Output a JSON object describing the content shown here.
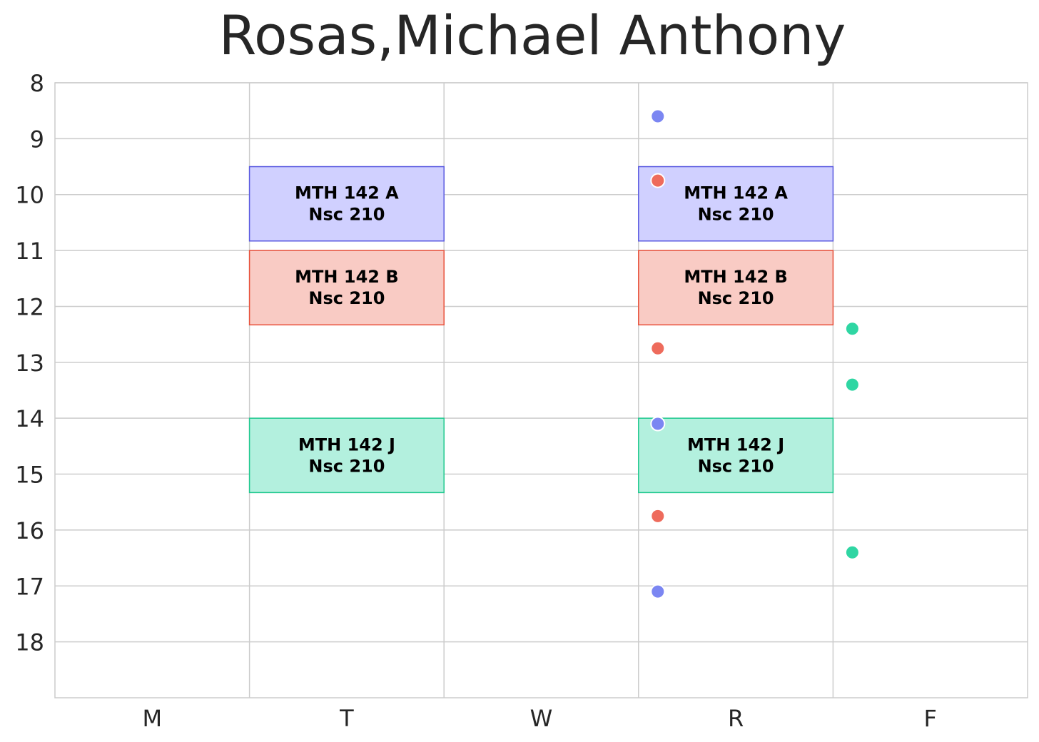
{
  "chart_data": {
    "type": "schedule",
    "title": "Rosas,Michael Anthony",
    "days": [
      "M",
      "T",
      "W",
      "R",
      "F"
    ],
    "y_ticks": [
      8,
      9,
      10,
      11,
      12,
      13,
      14,
      15,
      16,
      17,
      18
    ],
    "ylim": [
      8,
      19
    ],
    "y_inverted": true,
    "grid": true,
    "blocks": [
      {
        "day": "T",
        "start": 9.5,
        "end": 10.83,
        "course": "MTH 142 A",
        "room": "Nsc 210",
        "fill": "#d0d0ff",
        "edge": "#5a5ae0"
      },
      {
        "day": "T",
        "start": 11.0,
        "end": 12.33,
        "course": "MTH 142 B",
        "room": "Nsc 210",
        "fill": "#f9cbc4",
        "edge": "#e8503a"
      },
      {
        "day": "T",
        "start": 14.0,
        "end": 15.33,
        "course": "MTH 142 J",
        "room": "Nsc 210",
        "fill": "#b3f0de",
        "edge": "#1fc98f"
      },
      {
        "day": "R",
        "start": 9.5,
        "end": 10.83,
        "course": "MTH 142 A",
        "room": "Nsc 210",
        "fill": "#d0d0ff",
        "edge": "#5a5ae0"
      },
      {
        "day": "R",
        "start": 11.0,
        "end": 12.33,
        "course": "MTH 142 B",
        "room": "Nsc 210",
        "fill": "#f9cbc4",
        "edge": "#e8503a"
      },
      {
        "day": "R",
        "start": 14.0,
        "end": 15.33,
        "course": "MTH 142 J",
        "room": "Nsc 210",
        "fill": "#b3f0de",
        "edge": "#1fc98f"
      }
    ],
    "points": [
      {
        "day": "R",
        "time": 8.6,
        "color": "#7b86f2"
      },
      {
        "day": "R",
        "time": 9.75,
        "color": "#ee6b5c"
      },
      {
        "day": "R",
        "time": 12.75,
        "color": "#ee6b5c"
      },
      {
        "day": "R",
        "time": 14.1,
        "color": "#7b86f2"
      },
      {
        "day": "R",
        "time": 15.75,
        "color": "#ee6b5c"
      },
      {
        "day": "R",
        "time": 17.1,
        "color": "#7b86f2"
      },
      {
        "day": "F",
        "time": 12.4,
        "color": "#2fd6a3"
      },
      {
        "day": "F",
        "time": 13.4,
        "color": "#2fd6a3"
      },
      {
        "day": "F",
        "time": 16.4,
        "color": "#2fd6a3"
      }
    ]
  }
}
